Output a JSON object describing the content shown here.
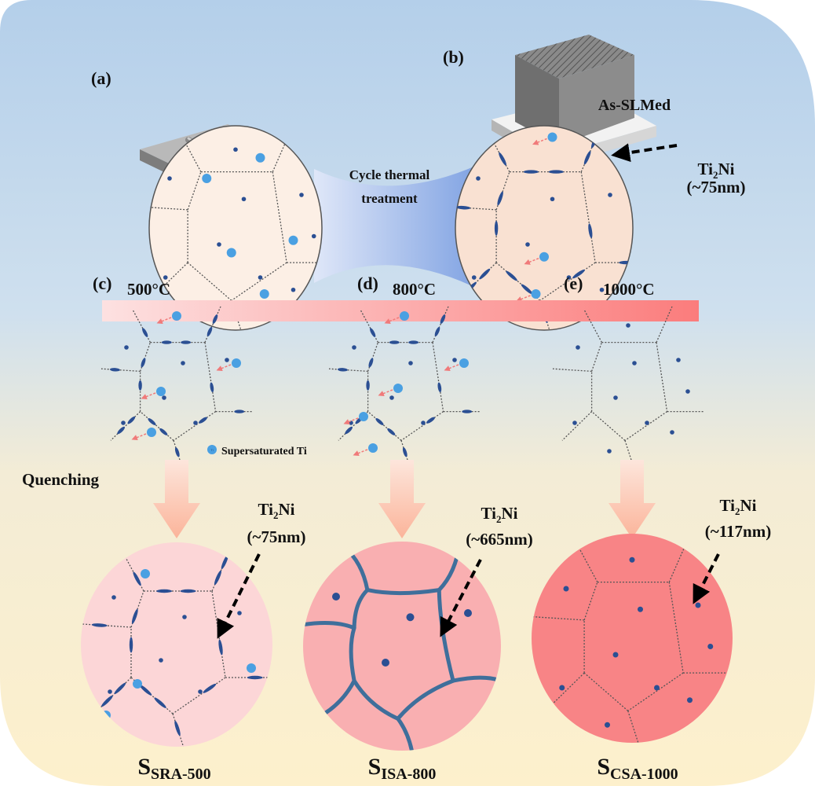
{
  "colors": {
    "bg_top": "#b4cfea",
    "bg_bottom": "#fdf0cc",
    "precipitate": "#2b4f93",
    "supersaturated_ti": "#4aa0e2",
    "diffusion_arrow": "#f07a7a",
    "sra_circle": "#fcd6d7",
    "isa_circle": "#f9afb1",
    "csa_circle": "#f88486",
    "temp_bar_start": "#fde1e1",
    "temp_bar_end": "#fb7c7c"
  },
  "panels": {
    "a": {
      "label": "(a)"
    },
    "b": {
      "label": "(b)"
    },
    "c": {
      "label": "(c)",
      "temperature": "500°C"
    },
    "d": {
      "label": "(d)",
      "temperature": "800°C"
    },
    "e": {
      "label": "(e)",
      "temperature": "1000°C"
    }
  },
  "top": {
    "bridge_line1": "Cycle thermal",
    "bridge_line2": "treatment",
    "as_slmed": "As-SLMed",
    "ti2ni": {
      "base": "Ti",
      "sub": "2",
      "rest": "Ni",
      "size": "(~75nm)"
    }
  },
  "legend": {
    "ti_symbol": "Ti",
    "label": "Supersaturated Ti"
  },
  "quenching": "Quenching",
  "results": [
    {
      "s": "S",
      "sub": "SRA-500",
      "ti2ni_base": "Ti",
      "ti2ni_sub": "2",
      "ti2ni_rest": "Ni",
      "size": "(~75nm)"
    },
    {
      "s": "S",
      "sub": "ISA-800",
      "ti2ni_base": "Ti",
      "ti2ni_sub": "2",
      "ti2ni_rest": "Ni",
      "size": "(~665nm)"
    },
    {
      "s": "S",
      "sub": "CSA-1000",
      "ti2ni_base": "Ti",
      "ti2ni_sub": "2",
      "ti2ni_rest": "Ni",
      "size": "(~117nm)"
    }
  ]
}
